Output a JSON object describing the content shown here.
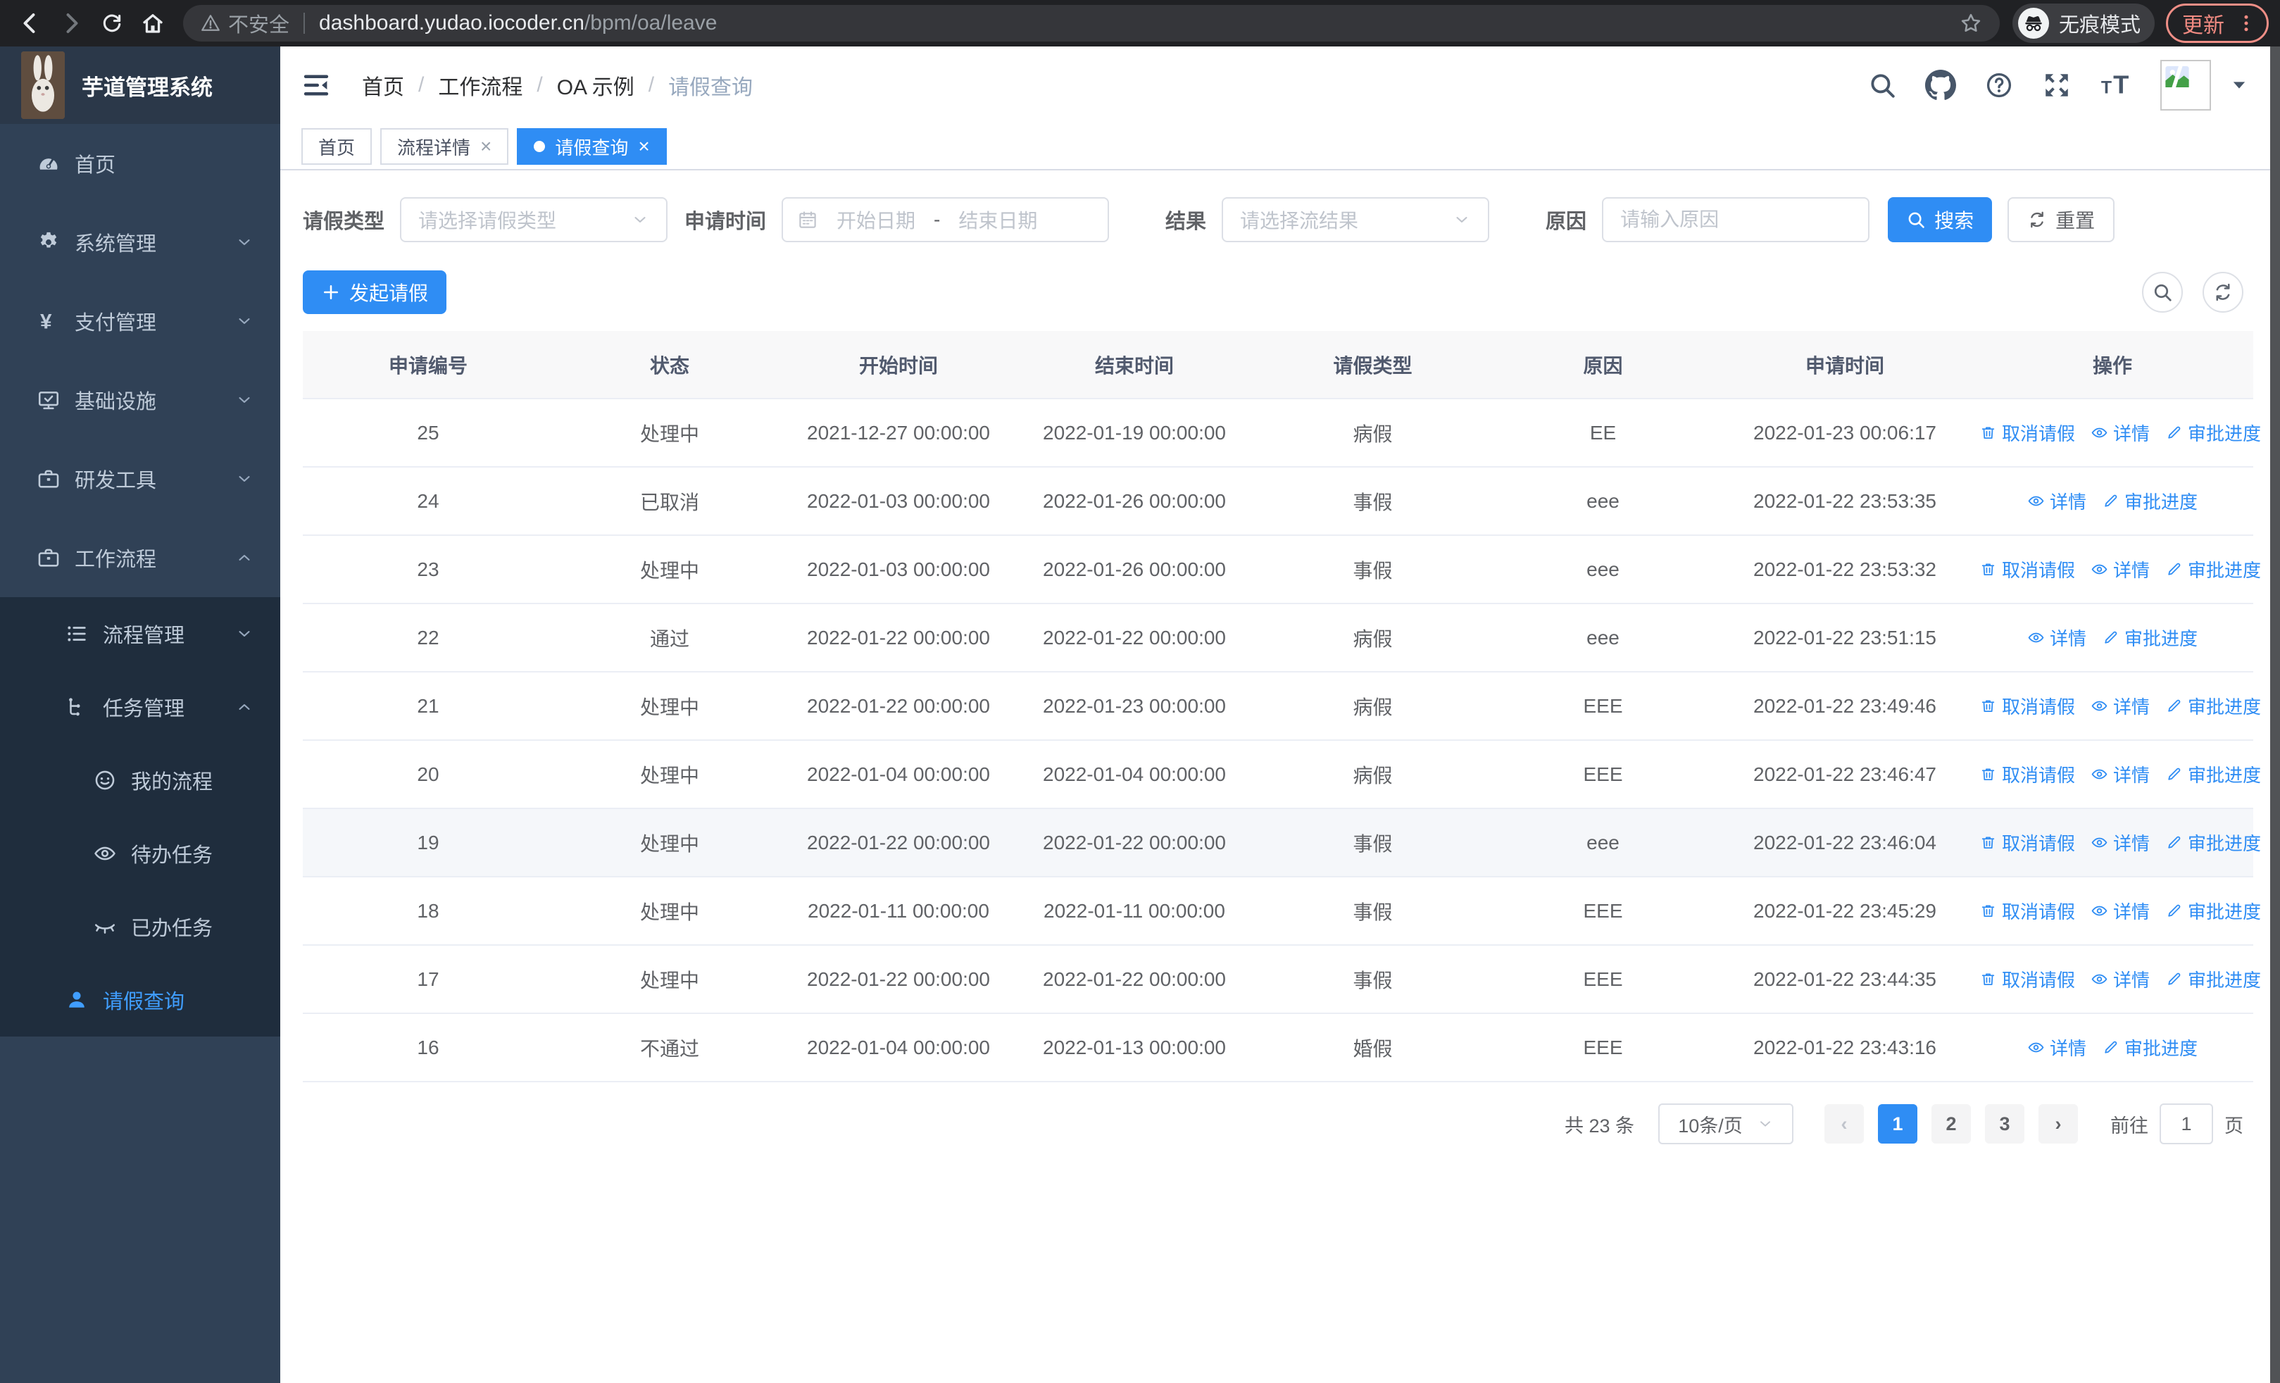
{
  "browser": {
    "security_label": "不安全",
    "url_host": "dashboard.yudao.iocoder.cn",
    "url_path": "/bpm/oa/leave",
    "incognito_label": "无痕模式",
    "update_label": "更新"
  },
  "header": {
    "logo_title": "芋道管理系统",
    "breadcrumb": [
      "首页",
      "工作流程",
      "OA 示例",
      "请假查询"
    ]
  },
  "tabs": [
    {
      "key": "home",
      "label": "首页",
      "closable": false,
      "active": false
    },
    {
      "key": "process-detail",
      "label": "流程详情",
      "closable": true,
      "active": false
    },
    {
      "key": "leave-query",
      "label": "请假查询",
      "closable": true,
      "active": true
    }
  ],
  "sidebar": {
    "items": [
      {
        "key": "home",
        "label": "首页",
        "icon": "dashboard",
        "level": 1
      },
      {
        "key": "system",
        "label": "系统管理",
        "icon": "gear",
        "level": 1,
        "chevron": "down"
      },
      {
        "key": "payment",
        "label": "支付管理",
        "icon": "yen",
        "level": 1,
        "chevron": "down"
      },
      {
        "key": "infrastructure",
        "label": "基础设施",
        "icon": "monitor",
        "level": 1,
        "chevron": "down"
      },
      {
        "key": "dev-tools",
        "label": "研发工具",
        "icon": "briefcase",
        "level": 1,
        "chevron": "down"
      },
      {
        "key": "workflow",
        "label": "工作流程",
        "icon": "briefcase",
        "level": 1,
        "chevron": "up"
      },
      {
        "key": "process-mgmt",
        "label": "流程管理",
        "icon": "list",
        "level": 2,
        "chevron": "down",
        "sub": true
      },
      {
        "key": "task-mgmt",
        "label": "任务管理",
        "icon": "tree",
        "level": 2,
        "chevron": "up",
        "sub": true
      },
      {
        "key": "my-process",
        "label": "我的流程",
        "icon": "face",
        "level": 3,
        "sub": true
      },
      {
        "key": "todo-task",
        "label": "待办任务",
        "icon": "eye-open",
        "level": 3,
        "sub": true
      },
      {
        "key": "done-task",
        "label": "已办任务",
        "icon": "eye-closed",
        "level": 3,
        "sub": true
      },
      {
        "key": "leave-query",
        "label": "请假查询",
        "icon": "user",
        "level": 2,
        "active": true,
        "sub": true
      }
    ]
  },
  "filters": {
    "leave_type": {
      "label": "请假类型",
      "placeholder": "请选择请假类型"
    },
    "apply_time": {
      "label": "申请时间",
      "start_placeholder": "开始日期",
      "separator": "-",
      "end_placeholder": "结束日期"
    },
    "result": {
      "label": "结果",
      "placeholder": "请选择流结果"
    },
    "reason": {
      "label": "原因",
      "placeholder": "请输入原因"
    },
    "search_label": "搜索",
    "reset_label": "重置"
  },
  "toolbar": {
    "create_label": "发起请假"
  },
  "table": {
    "columns": [
      "申请编号",
      "状态",
      "开始时间",
      "结束时间",
      "请假类型",
      "原因",
      "申请时间",
      "操作"
    ],
    "action_labels": {
      "cancel": "取消请假",
      "detail": "详情",
      "progress": "审批进度"
    },
    "rows": [
      {
        "id": "25",
        "status": "处理中",
        "start": "2021-12-27 00:00:00",
        "end": "2022-01-19 00:00:00",
        "type": "病假",
        "reason": "EE",
        "apply_time": "2022-01-23 00:06:17",
        "actions": [
          "cancel",
          "detail",
          "progress"
        ]
      },
      {
        "id": "24",
        "status": "已取消",
        "start": "2022-01-03 00:00:00",
        "end": "2022-01-26 00:00:00",
        "type": "事假",
        "reason": "eee",
        "apply_time": "2022-01-22 23:53:35",
        "actions": [
          "detail",
          "progress"
        ]
      },
      {
        "id": "23",
        "status": "处理中",
        "start": "2022-01-03 00:00:00",
        "end": "2022-01-26 00:00:00",
        "type": "事假",
        "reason": "eee",
        "apply_time": "2022-01-22 23:53:32",
        "actions": [
          "cancel",
          "detail",
          "progress"
        ]
      },
      {
        "id": "22",
        "status": "通过",
        "start": "2022-01-22 00:00:00",
        "end": "2022-01-22 00:00:00",
        "type": "病假",
        "reason": "eee",
        "apply_time": "2022-01-22 23:51:15",
        "actions": [
          "detail",
          "progress"
        ]
      },
      {
        "id": "21",
        "status": "处理中",
        "start": "2022-01-22 00:00:00",
        "end": "2022-01-23 00:00:00",
        "type": "病假",
        "reason": "EEE",
        "apply_time": "2022-01-22 23:49:46",
        "actions": [
          "cancel",
          "detail",
          "progress"
        ]
      },
      {
        "id": "20",
        "status": "处理中",
        "start": "2022-01-04 00:00:00",
        "end": "2022-01-04 00:00:00",
        "type": "病假",
        "reason": "EEE",
        "apply_time": "2022-01-22 23:46:47",
        "actions": [
          "cancel",
          "detail",
          "progress"
        ]
      },
      {
        "id": "19",
        "status": "处理中",
        "start": "2022-01-22 00:00:00",
        "end": "2022-01-22 00:00:00",
        "type": "事假",
        "reason": "eee",
        "apply_time": "2022-01-22 23:46:04",
        "actions": [
          "cancel",
          "detail",
          "progress"
        ],
        "highlighted": true
      },
      {
        "id": "18",
        "status": "处理中",
        "start": "2022-01-11 00:00:00",
        "end": "2022-01-11 00:00:00",
        "type": "事假",
        "reason": "EEE",
        "apply_time": "2022-01-22 23:45:29",
        "actions": [
          "cancel",
          "detail",
          "progress"
        ]
      },
      {
        "id": "17",
        "status": "处理中",
        "start": "2022-01-22 00:00:00",
        "end": "2022-01-22 00:00:00",
        "type": "事假",
        "reason": "EEE",
        "apply_time": "2022-01-22 23:44:35",
        "actions": [
          "cancel",
          "detail",
          "progress"
        ]
      },
      {
        "id": "16",
        "status": "不通过",
        "start": "2022-01-04 00:00:00",
        "end": "2022-01-13 00:00:00",
        "type": "婚假",
        "reason": "EEE",
        "apply_time": "2022-01-22 23:43:16",
        "actions": [
          "detail",
          "progress"
        ]
      }
    ]
  },
  "pagination": {
    "total": "共 23 条",
    "page_size": "10条/页",
    "pages": [
      "1",
      "2",
      "3"
    ],
    "active_page": "1",
    "goto_label": "前往",
    "goto_value": "1",
    "unit": "页"
  }
}
